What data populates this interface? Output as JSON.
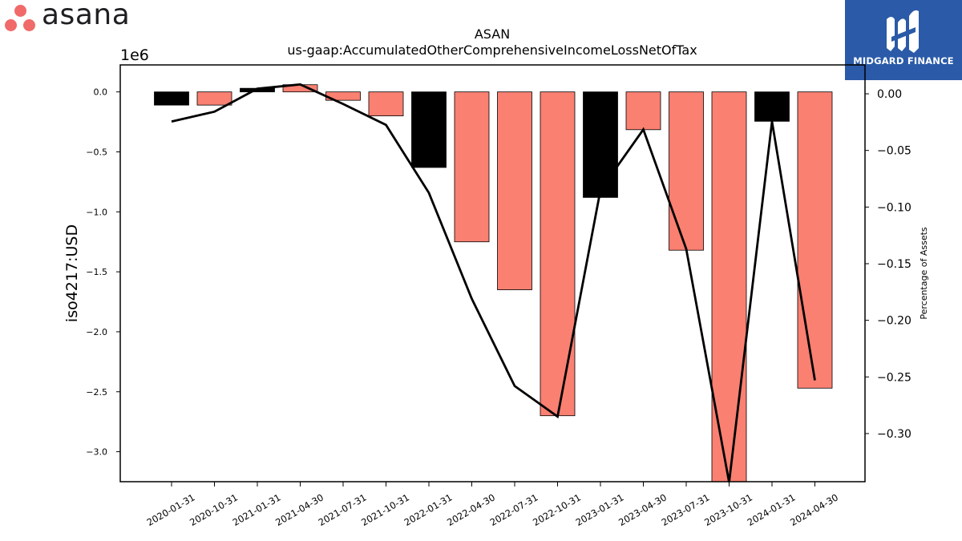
{
  "brand": {
    "name": "asana",
    "dot_color": "#f06a6a"
  },
  "badge": {
    "text": "MIDGARD FINANCE",
    "bg_color": "#2a5aa8",
    "icon": "midgard-logo-icon"
  },
  "chart_data": {
    "type": "bar",
    "title": "ASAN",
    "subtitle": "us-gaap:AccumulatedOtherComprehensiveIncomeLossNetOfTax",
    "ylabel": "iso4217:USD",
    "y_offset_label": "1e6",
    "y2label": "Percentage of Assets",
    "categories": [
      "2020-01-31",
      "2020-10-31",
      "2021-01-31",
      "2021-04-30",
      "2021-07-31",
      "2021-10-31",
      "2022-01-31",
      "2022-04-30",
      "2022-07-31",
      "2022-10-31",
      "2023-01-31",
      "2023-04-30",
      "2023-07-31",
      "2023-10-31",
      "2024-01-31",
      "2024-04-30"
    ],
    "values": [
      -110000,
      -110000,
      30000,
      60000,
      -70000,
      -200000,
      -630000,
      -1250000,
      -1650000,
      -2700000,
      -880000,
      -315000,
      -1320000,
      -3250000,
      -245000,
      -2470000
    ],
    "bar_colors": [
      "#000000",
      "#fa8072",
      "#000000",
      "#fa8072",
      "#fa8072",
      "#fa8072",
      "#000000",
      "#fa8072",
      "#fa8072",
      "#fa8072",
      "#000000",
      "#fa8072",
      "#fa8072",
      "#fa8072",
      "#000000",
      "#fa8072"
    ],
    "line_series": {
      "name": "Percentage of Assets",
      "values": [
        -0.0245,
        -0.0158,
        0.0045,
        0.0083,
        -0.009,
        -0.0275,
        -0.0875,
        -0.181,
        -0.258,
        -0.285,
        -0.085,
        -0.0315,
        -0.137,
        -0.343,
        -0.0245,
        -0.253
      ]
    },
    "ylim": [
      -3250000,
      225000
    ],
    "y2lim": [
      -0.3425,
      0.0255
    ],
    "yticks": [
      0,
      -500000,
      -1000000,
      -1500000,
      -2000000,
      -2500000,
      -3000000
    ],
    "ytick_labels": [
      "0.0",
      "−0.5",
      "−1.0",
      "−1.5",
      "−2.0",
      "−2.5",
      "−3.0"
    ],
    "y2ticks": [
      0,
      -0.05,
      -0.1,
      -0.15,
      -0.2,
      -0.25,
      -0.3
    ],
    "y2tick_labels": [
      "0.00",
      "−0.05",
      "−0.10",
      "−0.15",
      "−0.20",
      "−0.25",
      "−0.30"
    ],
    "bar_edge_color": "#000000",
    "line_color": "#000000",
    "grid": false
  }
}
